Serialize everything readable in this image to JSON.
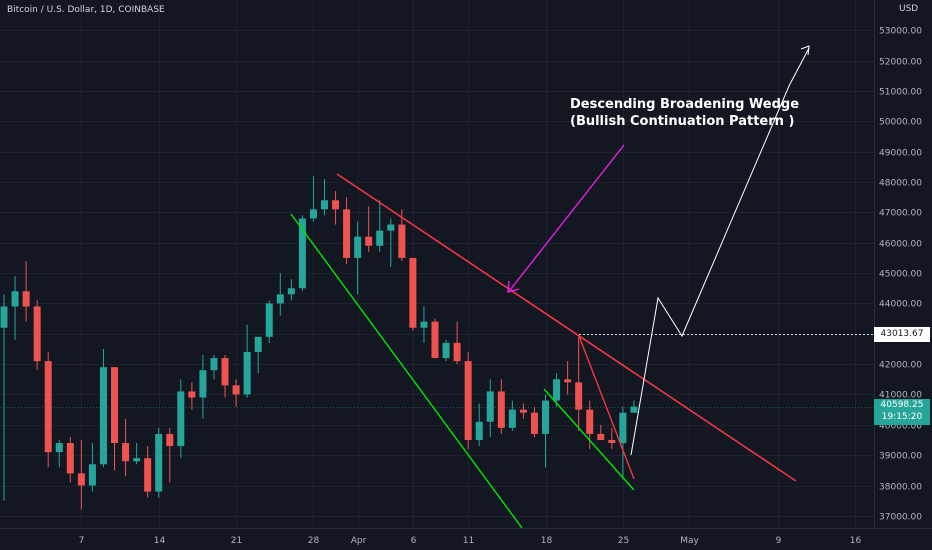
{
  "header": {
    "symbol_title": "Bitcoin / U.S. Dollar, 1D, COINBASE",
    "currency": "USD"
  },
  "annotation": {
    "line1": "Descending Broadening Wedge",
    "line2": "(Bullish Continuation Pattern )"
  },
  "price_tags": {
    "level": "43013.67",
    "current_price": "40598.25",
    "countdown": "19:15:20"
  },
  "colors": {
    "background": "#131722",
    "up": "#26a69a",
    "down": "#ef5350",
    "upper_trendline": "#f23645",
    "lower_trendline": "#00e600",
    "arrow": "#e91ee3",
    "projection": "#ffffff"
  },
  "chart_data": {
    "type": "candlestick",
    "symbol": "BTCUSD",
    "interval": "1D",
    "exchange": "COINBASE",
    "y_ticks": [
      37000,
      38000,
      39000,
      40000,
      41000,
      42000,
      43000,
      44000,
      45000,
      46000,
      47000,
      48000,
      49000,
      50000,
      51000,
      52000,
      53000
    ],
    "y_tick_labels": [
      "37000.00",
      "38000.00",
      "39000.00",
      "40000.00",
      "41000.00",
      "42000.00",
      "43000.00",
      "44000.00",
      "45000.00",
      "46000.00",
      "47000.00",
      "48000.00",
      "49000.00",
      "50000.00",
      "51000.00",
      "52000.00",
      "53000.00"
    ],
    "ylim": [
      36600,
      54000
    ],
    "x_ticks": [
      {
        "date": "2022-03-07",
        "label": "7"
      },
      {
        "date": "2022-03-14",
        "label": "14"
      },
      {
        "date": "2022-03-21",
        "label": "21"
      },
      {
        "date": "2022-03-28",
        "label": "28"
      },
      {
        "date": "2022-04-01",
        "label": "Apr"
      },
      {
        "date": "2022-04-06",
        "label": "6"
      },
      {
        "date": "2022-04-11",
        "label": "11"
      },
      {
        "date": "2022-04-18",
        "label": "18"
      },
      {
        "date": "2022-04-25",
        "label": "25"
      },
      {
        "date": "2022-05-01",
        "label": "May"
      },
      {
        "date": "2022-05-09",
        "label": "9"
      },
      {
        "date": "2022-05-16",
        "label": "16"
      }
    ],
    "xlim": [
      "2022-02-28",
      "2022-05-17"
    ],
    "candles": [
      {
        "date": "2022-02-28",
        "o": 43200,
        "h": 44300,
        "l": 37500,
        "c": 43900
      },
      {
        "date": "2022-03-01",
        "o": 43900,
        "h": 44900,
        "l": 42800,
        "c": 44400
      },
      {
        "date": "2022-03-02",
        "o": 44400,
        "h": 45400,
        "l": 43400,
        "c": 43900
      },
      {
        "date": "2022-03-03",
        "o": 43900,
        "h": 44100,
        "l": 41800,
        "c": 42100
      },
      {
        "date": "2022-03-04",
        "o": 42100,
        "h": 42400,
        "l": 38600,
        "c": 39100
      },
      {
        "date": "2022-03-05",
        "o": 39100,
        "h": 39500,
        "l": 38600,
        "c": 39400
      },
      {
        "date": "2022-03-06",
        "o": 39400,
        "h": 39600,
        "l": 38100,
        "c": 38400
      },
      {
        "date": "2022-03-07",
        "o": 38400,
        "h": 39500,
        "l": 37200,
        "c": 38000
      },
      {
        "date": "2022-03-08",
        "o": 38000,
        "h": 39400,
        "l": 37800,
        "c": 38700
      },
      {
        "date": "2022-03-09",
        "o": 38700,
        "h": 42500,
        "l": 38600,
        "c": 41900
      },
      {
        "date": "2022-03-10",
        "o": 41900,
        "h": 41900,
        "l": 38500,
        "c": 39400
      },
      {
        "date": "2022-03-11",
        "o": 39400,
        "h": 40200,
        "l": 38300,
        "c": 38800
      },
      {
        "date": "2022-03-12",
        "o": 38800,
        "h": 39400,
        "l": 38700,
        "c": 38900
      },
      {
        "date": "2022-03-13",
        "o": 38900,
        "h": 39300,
        "l": 37600,
        "c": 37800
      },
      {
        "date": "2022-03-14",
        "o": 37800,
        "h": 39900,
        "l": 37600,
        "c": 39700
      },
      {
        "date": "2022-03-15",
        "o": 39700,
        "h": 39900,
        "l": 38100,
        "c": 39300
      },
      {
        "date": "2022-03-16",
        "o": 39300,
        "h": 41500,
        "l": 38900,
        "c": 41100
      },
      {
        "date": "2022-03-17",
        "o": 41100,
        "h": 41400,
        "l": 40500,
        "c": 40900
      },
      {
        "date": "2022-03-18",
        "o": 40900,
        "h": 42300,
        "l": 40200,
        "c": 41800
      },
      {
        "date": "2022-03-19",
        "o": 41800,
        "h": 42300,
        "l": 41500,
        "c": 42200
      },
      {
        "date": "2022-03-20",
        "o": 42200,
        "h": 42300,
        "l": 40900,
        "c": 41300
      },
      {
        "date": "2022-03-21",
        "o": 41300,
        "h": 41500,
        "l": 40600,
        "c": 41000
      },
      {
        "date": "2022-03-22",
        "o": 41000,
        "h": 43300,
        "l": 40900,
        "c": 42400
      },
      {
        "date": "2022-03-23",
        "o": 42400,
        "h": 42900,
        "l": 41700,
        "c": 42900
      },
      {
        "date": "2022-03-24",
        "o": 42900,
        "h": 44100,
        "l": 42700,
        "c": 44000
      },
      {
        "date": "2022-03-25",
        "o": 44000,
        "h": 45000,
        "l": 43600,
        "c": 44300
      },
      {
        "date": "2022-03-26",
        "o": 44300,
        "h": 44800,
        "l": 44100,
        "c": 44500
      },
      {
        "date": "2022-03-27",
        "o": 44500,
        "h": 46900,
        "l": 44400,
        "c": 46800
      },
      {
        "date": "2022-03-28",
        "o": 46800,
        "h": 48200,
        "l": 46700,
        "c": 47100
      },
      {
        "date": "2022-03-29",
        "o": 47100,
        "h": 48100,
        "l": 46900,
        "c": 47400
      },
      {
        "date": "2022-03-30",
        "o": 47400,
        "h": 47700,
        "l": 46600,
        "c": 47100
      },
      {
        "date": "2022-03-31",
        "o": 47100,
        "h": 47500,
        "l": 45300,
        "c": 45500
      },
      {
        "date": "2022-04-01",
        "o": 45500,
        "h": 46700,
        "l": 44300,
        "c": 46200
      },
      {
        "date": "2022-04-02",
        "o": 46200,
        "h": 47200,
        "l": 45700,
        "c": 45900
      },
      {
        "date": "2022-04-03",
        "o": 45900,
        "h": 47400,
        "l": 45700,
        "c": 46400
      },
      {
        "date": "2022-04-04",
        "o": 46400,
        "h": 46800,
        "l": 45200,
        "c": 46600
      },
      {
        "date": "2022-04-05",
        "o": 46600,
        "h": 47100,
        "l": 45400,
        "c": 45500
      },
      {
        "date": "2022-04-06",
        "o": 45500,
        "h": 45500,
        "l": 43100,
        "c": 43200
      },
      {
        "date": "2022-04-07",
        "o": 43200,
        "h": 43900,
        "l": 42700,
        "c": 43400
      },
      {
        "date": "2022-04-08",
        "o": 43400,
        "h": 43500,
        "l": 42200,
        "c": 42200
      },
      {
        "date": "2022-04-09",
        "o": 42200,
        "h": 42800,
        "l": 42100,
        "c": 42700
      },
      {
        "date": "2022-04-10",
        "o": 42700,
        "h": 43400,
        "l": 42000,
        "c": 42100
      },
      {
        "date": "2022-04-11",
        "o": 42100,
        "h": 42400,
        "l": 39200,
        "c": 39500
      },
      {
        "date": "2022-04-12",
        "o": 39500,
        "h": 40700,
        "l": 39300,
        "c": 40100
      },
      {
        "date": "2022-04-13",
        "o": 40100,
        "h": 41500,
        "l": 39600,
        "c": 41100
      },
      {
        "date": "2022-04-14",
        "o": 41100,
        "h": 41500,
        "l": 39700,
        "c": 39900
      },
      {
        "date": "2022-04-15",
        "o": 39900,
        "h": 40800,
        "l": 39800,
        "c": 40500
      },
      {
        "date": "2022-04-16",
        "o": 40500,
        "h": 40700,
        "l": 40200,
        "c": 40400
      },
      {
        "date": "2022-04-17",
        "o": 40400,
        "h": 40600,
        "l": 39600,
        "c": 39700
      },
      {
        "date": "2022-04-18",
        "o": 39700,
        "h": 41000,
        "l": 38600,
        "c": 40800
      },
      {
        "date": "2022-04-19",
        "o": 40800,
        "h": 41700,
        "l": 40600,
        "c": 41500
      },
      {
        "date": "2022-04-20",
        "o": 41500,
        "h": 42100,
        "l": 41000,
        "c": 41400
      },
      {
        "date": "2022-04-21",
        "o": 41400,
        "h": 42900,
        "l": 39800,
        "c": 40500
      },
      {
        "date": "2022-04-22",
        "o": 40500,
        "h": 40800,
        "l": 39200,
        "c": 39700
      },
      {
        "date": "2022-04-23",
        "o": 39700,
        "h": 40000,
        "l": 39500,
        "c": 39500
      },
      {
        "date": "2022-04-24",
        "o": 39500,
        "h": 39900,
        "l": 39200,
        "c": 39400
      },
      {
        "date": "2022-04-25",
        "o": 39400,
        "h": 40600,
        "l": 38200,
        "c": 40400
      },
      {
        "date": "2022-04-26",
        "o": 40400,
        "h": 40800,
        "l": 40400,
        "c": 40600
      }
    ]
  }
}
